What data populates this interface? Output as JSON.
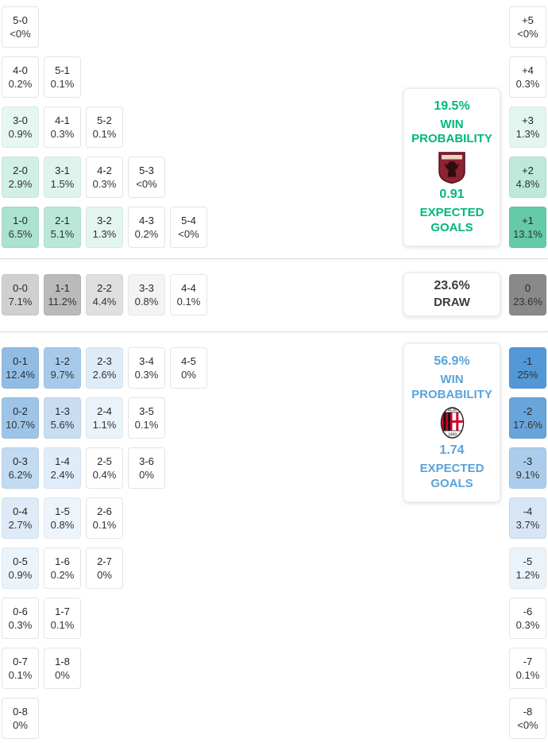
{
  "chart_data": {
    "type": "heatmap",
    "sections": [
      {
        "id": "home-win",
        "rgb": [
          0,
          168,
          112
        ],
        "accent": "#00b77d",
        "rows": [
          [
            {
              "score": "5-0",
              "pct": "<0%",
              "v": 0
            }
          ],
          [
            {
              "score": "4-0",
              "pct": "0.2%",
              "v": 0.2
            },
            {
              "score": "5-1",
              "pct": "0.1%",
              "v": 0.1
            }
          ],
          [
            {
              "score": "3-0",
              "pct": "0.9%",
              "v": 0.9
            },
            {
              "score": "4-1",
              "pct": "0.3%",
              "v": 0.3
            },
            {
              "score": "5-2",
              "pct": "0.1%",
              "v": 0.1
            }
          ],
          [
            {
              "score": "2-0",
              "pct": "2.9%",
              "v": 2.9
            },
            {
              "score": "3-1",
              "pct": "1.5%",
              "v": 1.5
            },
            {
              "score": "4-2",
              "pct": "0.3%",
              "v": 0.3
            },
            {
              "score": "5-3",
              "pct": "<0%",
              "v": 0
            }
          ],
          [
            {
              "score": "1-0",
              "pct": "6.5%",
              "v": 6.5
            },
            {
              "score": "2-1",
              "pct": "5.1%",
              "v": 5.1
            },
            {
              "score": "3-2",
              "pct": "1.3%",
              "v": 1.3
            },
            {
              "score": "4-3",
              "pct": "0.2%",
              "v": 0.2
            },
            {
              "score": "5-4",
              "pct": "<0%",
              "v": 0
            }
          ]
        ],
        "diffs": [
          {
            "label": "+5",
            "pct": "<0%",
            "v": 0
          },
          {
            "label": "+4",
            "pct": "0.3%",
            "v": 0.3
          },
          {
            "label": "+3",
            "pct": "1.3%",
            "v": 1.3
          },
          {
            "label": "+2",
            "pct": "4.8%",
            "v": 4.8
          },
          {
            "label": "+1",
            "pct": "13.1%",
            "v": 13.1
          }
        ],
        "panel": {
          "probability": "19.5%",
          "probability_label": "WIN PROBABILITY",
          "team": "Torino FC",
          "logo": "torino-crest-icon",
          "metric": "0.91",
          "metric_label": "EXPECTED GOALS"
        }
      },
      {
        "id": "draw",
        "rgb": [
          124,
          124,
          124
        ],
        "accent": "#3d3d3d",
        "rows": [
          [
            {
              "score": "0-0",
              "pct": "7.1%",
              "v": 7.1
            },
            {
              "score": "1-1",
              "pct": "11.2%",
              "v": 11.2
            },
            {
              "score": "2-2",
              "pct": "4.4%",
              "v": 4.4
            },
            {
              "score": "3-3",
              "pct": "0.8%",
              "v": 0.8
            },
            {
              "score": "4-4",
              "pct": "0.1%",
              "v": 0.1
            }
          ]
        ],
        "diffs": [
          {
            "label": "0",
            "pct": "23.6%",
            "v": 23.6
          }
        ],
        "panel": {
          "probability": "23.6%",
          "probability_label": "DRAW"
        }
      },
      {
        "id": "away-win",
        "rgb": [
          64,
          141,
          210
        ],
        "accent": "#5ba3d9",
        "rows": [
          [
            {
              "score": "0-1",
              "pct": "12.4%",
              "v": 12.4
            },
            {
              "score": "1-2",
              "pct": "9.7%",
              "v": 9.7
            },
            {
              "score": "2-3",
              "pct": "2.6%",
              "v": 2.6
            },
            {
              "score": "3-4",
              "pct": "0.3%",
              "v": 0.3
            },
            {
              "score": "4-5",
              "pct": "0%",
              "v": 0
            }
          ],
          [
            {
              "score": "0-2",
              "pct": "10.7%",
              "v": 10.7
            },
            {
              "score": "1-3",
              "pct": "5.6%",
              "v": 5.6
            },
            {
              "score": "2-4",
              "pct": "1.1%",
              "v": 1.1
            },
            {
              "score": "3-5",
              "pct": "0.1%",
              "v": 0.1
            }
          ],
          [
            {
              "score": "0-3",
              "pct": "6.2%",
              "v": 6.2
            },
            {
              "score": "1-4",
              "pct": "2.4%",
              "v": 2.4
            },
            {
              "score": "2-5",
              "pct": "0.4%",
              "v": 0.4
            },
            {
              "score": "3-6",
              "pct": "0%",
              "v": 0
            }
          ],
          [
            {
              "score": "0-4",
              "pct": "2.7%",
              "v": 2.7
            },
            {
              "score": "1-5",
              "pct": "0.8%",
              "v": 0.8
            },
            {
              "score": "2-6",
              "pct": "0.1%",
              "v": 0.1
            }
          ],
          [
            {
              "score": "0-5",
              "pct": "0.9%",
              "v": 0.9
            },
            {
              "score": "1-6",
              "pct": "0.2%",
              "v": 0.2
            },
            {
              "score": "2-7",
              "pct": "0%",
              "v": 0
            }
          ],
          [
            {
              "score": "0-6",
              "pct": "0.3%",
              "v": 0.3
            },
            {
              "score": "1-7",
              "pct": "0.1%",
              "v": 0.1
            }
          ],
          [
            {
              "score": "0-7",
              "pct": "0.1%",
              "v": 0.1
            },
            {
              "score": "1-8",
              "pct": "0%",
              "v": 0
            }
          ],
          [
            {
              "score": "0-8",
              "pct": "0%",
              "v": 0
            }
          ]
        ],
        "diffs": [
          {
            "label": "-1",
            "pct": "25%",
            "v": 25
          },
          {
            "label": "-2",
            "pct": "17.6%",
            "v": 17.6
          },
          {
            "label": "-3",
            "pct": "9.1%",
            "v": 9.1
          },
          {
            "label": "-4",
            "pct": "3.7%",
            "v": 3.7
          },
          {
            "label": "-5",
            "pct": "1.2%",
            "v": 1.2
          },
          {
            "label": "-6",
            "pct": "0.3%",
            "v": 0.3
          },
          {
            "label": "-7",
            "pct": "0.1%",
            "v": 0.1
          },
          {
            "label": "-8",
            "pct": "<0%",
            "v": 0
          }
        ],
        "panel": {
          "probability": "56.9%",
          "probability_label": "WIN PROBABILITY",
          "team": "AC Milan",
          "logo": "milan-crest-icon",
          "metric": "1.74",
          "metric_label": "EXPECTED GOALS"
        }
      }
    ]
  }
}
